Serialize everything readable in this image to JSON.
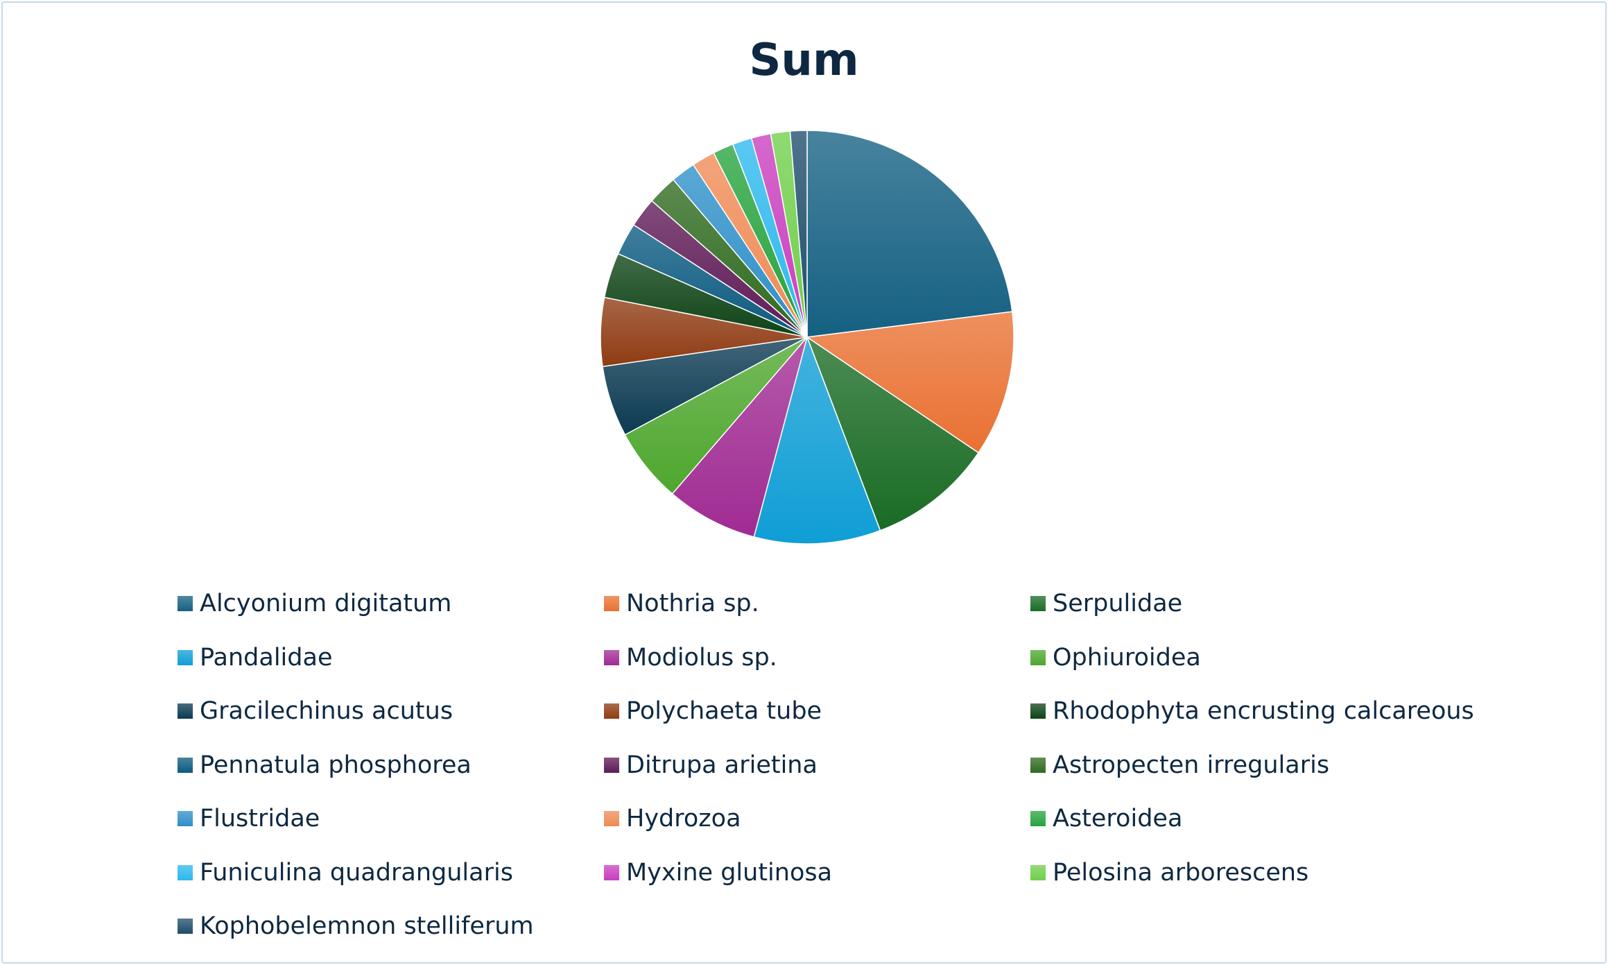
{
  "chart_data": {
    "type": "pie",
    "title": "Sum",
    "legend_position": "bottom",
    "slices": [
      {
        "label": "Alcyonium digitatum",
        "value": 22.8,
        "color": "#156082"
      },
      {
        "label": "Nothria sp.",
        "value": 11.3,
        "color": "#e97132"
      },
      {
        "label": "Serpulidae",
        "value": 9.7,
        "color": "#196b24"
      },
      {
        "label": "Pandalidae",
        "value": 9.8,
        "color": "#0f9ed5"
      },
      {
        "label": "Modiolus sp.",
        "value": 7.1,
        "color": "#a02b93"
      },
      {
        "label": "Ophiuroidea",
        "value": 5.8,
        "color": "#4ea72e"
      },
      {
        "label": "Gracilechinus acutus",
        "value": 5.5,
        "color": "#0b3a52"
      },
      {
        "label": "Polychaeta tube",
        "value": 5.3,
        "color": "#8f3b12"
      },
      {
        "label": "Rhodophyta encrusting calcareous",
        "value": 3.5,
        "color": "#0d4315"
      },
      {
        "label": "Pennatula phosphorea",
        "value": 2.5,
        "color": "#0b5a80"
      },
      {
        "label": "Ditrupa arietina",
        "value": 2.3,
        "color": "#5e1a56"
      },
      {
        "label": "Astropecten irregularis",
        "value": 2.3,
        "color": "#2e6a1e"
      },
      {
        "label": "Flustridae",
        "value": 1.9,
        "color": "#2d8fc8"
      },
      {
        "label": "Hydrozoa",
        "value": 1.8,
        "color": "#ef8a55"
      },
      {
        "label": "Asteroidea",
        "value": 1.6,
        "color": "#26a33d"
      },
      {
        "label": "Funiculina quadrangularis",
        "value": 1.5,
        "color": "#2cb8ee"
      },
      {
        "label": "Myxine glutinosa",
        "value": 1.5,
        "color": "#c93ebf"
      },
      {
        "label": "Pelosina arborescens",
        "value": 1.5,
        "color": "#6fcf4a"
      },
      {
        "label": "Kophobelemnon stelliferum",
        "value": 1.3,
        "color": "#1d4d6b"
      }
    ]
  }
}
